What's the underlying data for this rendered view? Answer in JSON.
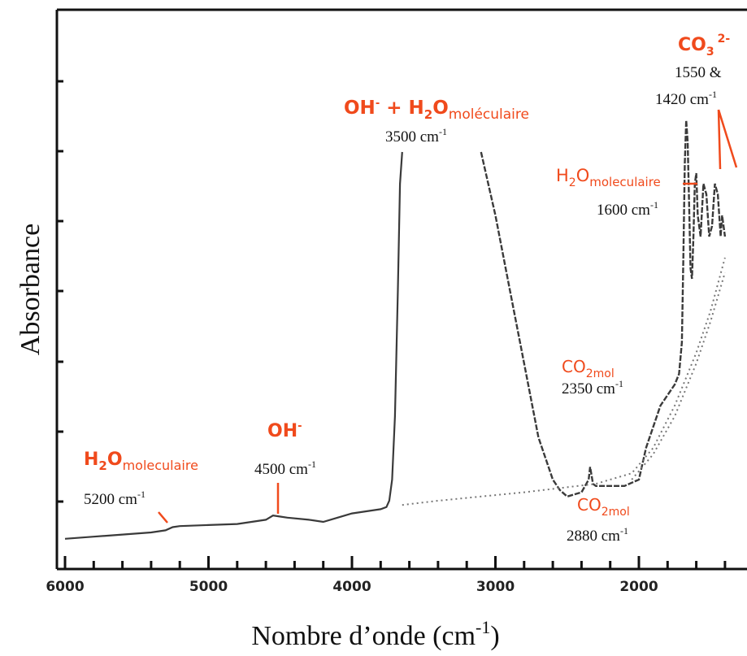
{
  "chart_data": {
    "type": "line",
    "xlabel": "Nombre d’onde (cm",
    "xlabel_sup": "-1",
    "xlabel_end": ")",
    "ylabel": "Absorbance",
    "xlim": [
      6000,
      1400
    ],
    "x_reversed": true,
    "x_ticks": [
      6000,
      5000,
      4000,
      3000,
      2000
    ],
    "grid": false,
    "colors": {
      "spectrum": "#333333",
      "annotation": "#f04a1c",
      "axis": "#111111"
    },
    "series": [
      {
        "style": "solid",
        "x": [
          6000,
          5800,
          5600,
          5400,
          5300,
          5250,
          5200,
          5000,
          4800,
          4600,
          4550,
          4500,
          4450,
          4300,
          4200,
          4100,
          4000,
          3900,
          3800,
          3760,
          3740,
          3720,
          3700,
          3680,
          3665,
          3650
        ],
        "y": [
          0.02,
          0.03,
          0.04,
          0.05,
          0.06,
          0.075,
          0.08,
          0.085,
          0.09,
          0.11,
          0.13,
          0.125,
          0.12,
          0.11,
          0.1,
          0.12,
          0.14,
          0.15,
          0.16,
          0.17,
          0.2,
          0.3,
          0.6,
          1.2,
          1.7,
          1.85
        ]
      },
      {
        "style": "dashed",
        "x": [
          3100,
          3000,
          2900,
          2800,
          2700,
          2600,
          2550,
          2500,
          2400,
          2350,
          2340,
          2330,
          2320,
          2300,
          2200,
          2100,
          2000,
          1950,
          1850,
          1750,
          1720,
          1700,
          1690,
          1680,
          1670,
          1660,
          1650,
          1640,
          1630,
          1620,
          1610,
          1600,
          1590,
          1570,
          1550,
          1530,
          1510,
          1490,
          1470,
          1450,
          1430,
          1420,
          1400
        ],
        "y": [
          1.85,
          1.55,
          1.2,
          0.85,
          0.5,
          0.3,
          0.25,
          0.22,
          0.24,
          0.3,
          0.36,
          0.32,
          0.28,
          0.27,
          0.27,
          0.27,
          0.3,
          0.45,
          0.65,
          0.75,
          0.8,
          0.95,
          1.35,
          1.8,
          2.0,
          1.9,
          1.6,
          1.3,
          1.25,
          1.45,
          1.7,
          1.75,
          1.55,
          1.45,
          1.7,
          1.65,
          1.45,
          1.5,
          1.7,
          1.65,
          1.45,
          1.55,
          1.45
        ]
      },
      {
        "style": "dotted",
        "x": [
          3650,
          3400,
          3100,
          2800,
          2550,
          2300,
          2050,
          1900,
          1750,
          1600,
          1500,
          1400
        ],
        "y": [
          0.18,
          0.2,
          0.22,
          0.24,
          0.26,
          0.28,
          0.33,
          0.45,
          0.65,
          0.9,
          1.1,
          1.35
        ]
      },
      {
        "style": "dotted",
        "x": [
          2050,
          1900,
          1750,
          1600,
          1500,
          1400
        ],
        "y": [
          0.3,
          0.42,
          0.6,
          0.85,
          1.05,
          1.28
        ]
      }
    ],
    "annotations": [
      {
        "main": "H",
        "sub1": "2",
        "main2": "O",
        "sub2": "moleculaire",
        "wavenumber": "5200 cm",
        "sup": "-1"
      },
      {
        "main": "OH",
        "sup_main": "-",
        "wavenumber": "4500 cm",
        "sup": "-1"
      },
      {
        "main": "OH",
        "sup_main": "-",
        "plus": " + H",
        "sub1": "2",
        "main2": "O",
        "sub2": "moléculaire",
        "wavenumber": "3500 cm",
        "sup": "-1"
      },
      {
        "main": "CO",
        "sub1": "2mol",
        "wavenumber": "2350 cm",
        "sup": "-1"
      },
      {
        "main": "CO",
        "sub1": "2mol",
        "wavenumber": "2880 cm",
        "sup": "-1"
      },
      {
        "main": "H",
        "sub1": "2",
        "main2": "O",
        "sub2": "moleculaire",
        "wavenumber": "1600 cm",
        "sup": "-1"
      },
      {
        "main": "CO",
        "sub1": "3",
        "sup_main": "2-",
        "wavenumber_line1": "1550 &",
        "wavenumber": "1420 cm",
        "sup": "-1"
      }
    ]
  }
}
